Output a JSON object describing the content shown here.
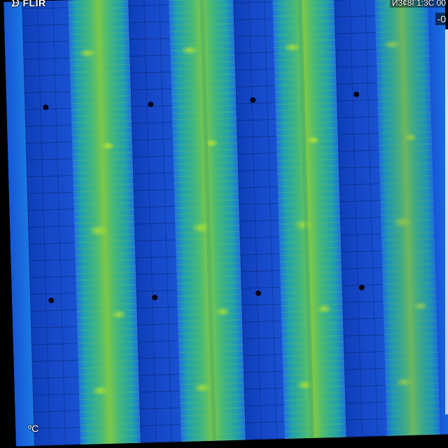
{
  "overlay": {
    "brand": "ᗦ FLIR",
    "timestamp": "И3¢8Г1:3С 00",
    "temperature_top": "-0",
    "unit": "ºC"
  },
  "palette": {
    "cool": "#1546c6",
    "mid": "#1f9fb0",
    "warm": "#7cc84a",
    "hot": "#c8e628"
  },
  "scene": {
    "description_items": [
      "panel-row",
      "warm-row",
      "panel-row",
      "warm-row",
      "panel-row",
      "warm-row",
      "panel-row",
      "warm-row",
      "edge-row"
    ]
  }
}
